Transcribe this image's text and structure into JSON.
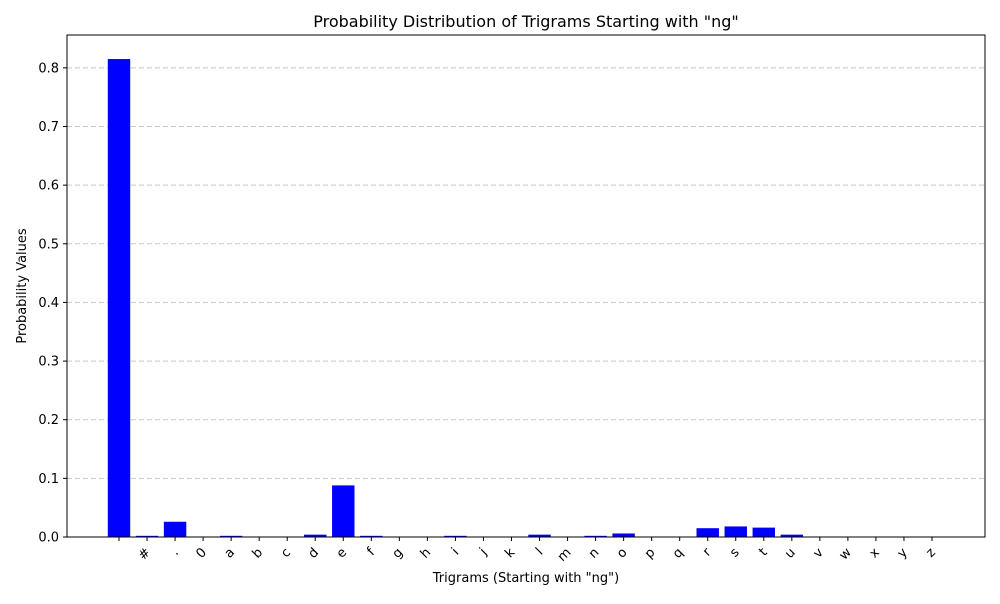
{
  "chart_data": {
    "type": "bar",
    "title": "Probability Distribution of Trigrams Starting with \"ng\"",
    "xlabel": "Trigrams (Starting with \"ng\")",
    "ylabel": "Probability Values",
    "categories": [
      " ",
      "#",
      ".",
      "0",
      "a",
      "b",
      "c",
      "d",
      "e",
      "f",
      "g",
      "h",
      "i",
      "j",
      "k",
      "l",
      "m",
      "n",
      "o",
      "p",
      "q",
      "r",
      "s",
      "t",
      "u",
      "v",
      "w",
      "x",
      "y",
      "z"
    ],
    "values": [
      0.815,
      0.002,
      0.026,
      0.0,
      0.002,
      0.0,
      0.0,
      0.004,
      0.088,
      0.002,
      0.0,
      0.0,
      0.002,
      0.0,
      0.0,
      0.004,
      0.0,
      0.002,
      0.006,
      0.0,
      0.0,
      0.015,
      0.018,
      0.016,
      0.004,
      0.0,
      0.0,
      0.0,
      0.0,
      0.0
    ],
    "ylim": [
      0,
      0.856
    ],
    "yticks": [
      0.0,
      0.1,
      0.2,
      0.3,
      0.4,
      0.5,
      0.6,
      0.7,
      0.8
    ],
    "ytick_labels": [
      "0.0",
      "0.1",
      "0.2",
      "0.3",
      "0.4",
      "0.5",
      "0.6",
      "0.7",
      "0.8"
    ],
    "grid": "y-dashed",
    "bar_color": "#0000ff"
  }
}
